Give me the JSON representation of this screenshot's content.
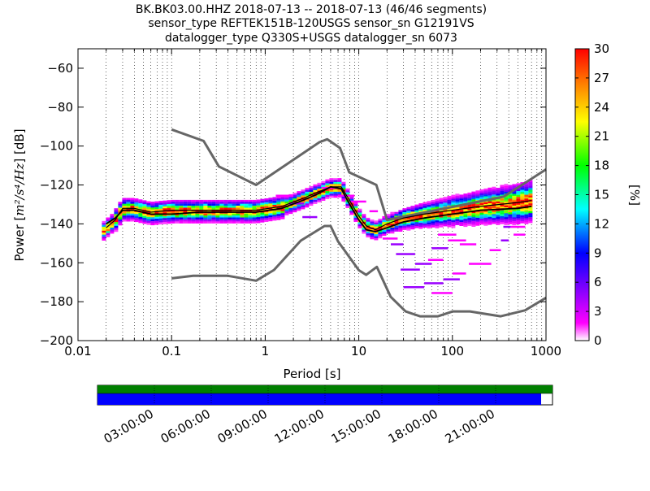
{
  "chart_data": {
    "type": "heatmap",
    "title_lines": [
      "BK.BK03.00.HHZ   2018-07-13 -- 2018-07-13  (46/46 segments)",
      "sensor_type REFTEK151B-120USGS sensor_sn G12191VS",
      "datalogger_type Q330S+USGS datalogger_sn 6073"
    ],
    "xlabel": "Period [s]",
    "ylabel_prefix": "Power [",
    "ylabel_math": "m²/s⁴/Hz",
    "ylabel_suffix": "] [dB]",
    "x_scale": "log",
    "xlim": [
      0.01,
      1000
    ],
    "ylim": [
      -200,
      -50
    ],
    "x_ticks": [
      0.01,
      0.1,
      1,
      10,
      100,
      1000
    ],
    "x_tick_labels": [
      "0.01",
      "0.1",
      "1",
      "10",
      "100",
      "1000"
    ],
    "y_ticks": [
      -200,
      -180,
      -160,
      -140,
      -120,
      -100,
      -80,
      -60
    ],
    "y_tick_labels": [
      "−200",
      "−180",
      "−160",
      "−140",
      "−120",
      "−100",
      "−80",
      "−60"
    ],
    "grid": "dotted-vertical",
    "colorbar": {
      "label": "[%]",
      "range": [
        0,
        30
      ],
      "ticks": [
        0,
        3,
        6,
        9,
        12,
        15,
        18,
        21,
        24,
        27,
        30
      ],
      "tick_labels": [
        "0",
        "3",
        "6",
        "9",
        "12",
        "15",
        "18",
        "21",
        "24",
        "27",
        "30"
      ],
      "colormap": [
        "#ffffff",
        "#ff00ff",
        "#7f00ff",
        "#0000ff",
        "#00ffff",
        "#00ff00",
        "#ffff00",
        "#ff7f00",
        "#ff0000"
      ]
    },
    "noise_model_high": {
      "color": "#666666",
      "x": [
        0.1,
        0.22,
        0.32,
        0.8,
        3.8,
        4.6,
        6.3,
        7.9,
        15.4,
        20,
        354,
        1000
      ],
      "y": [
        -91.5,
        -97.4,
        -110.5,
        -120,
        -98,
        -96.5,
        -101,
        -113.5,
        -120,
        -138,
        -126,
        -112
      ]
    },
    "noise_model_low": {
      "color": "#666666",
      "x": [
        0.1,
        0.17,
        0.4,
        0.8,
        1.24,
        2.4,
        4.3,
        5,
        6,
        10,
        12,
        15.6,
        21.9,
        31.6,
        45,
        70,
        101,
        154,
        328,
        600,
        1000
      ],
      "y": [
        -168,
        -166.7,
        -166.7,
        -169.2,
        -163.7,
        -148.6,
        -141.1,
        -141.1,
        -149,
        -163.8,
        -166.2,
        -162.1,
        -177.5,
        -185,
        -187.5,
        -187.5,
        -185,
        -185,
        -187.5,
        -184.4,
        -178
      ]
    },
    "mean_curve": {
      "color": "#000000",
      "x": [
        0.02,
        0.025,
        0.03,
        0.04,
        0.06,
        0.1,
        0.2,
        0.4,
        0.8,
        1.5,
        2.5,
        3.5,
        5,
        6.5,
        8,
        10,
        12,
        15,
        20,
        30,
        50,
        100,
        200,
        500,
        700
      ],
      "y": [
        -140,
        -137,
        -133,
        -133,
        -135,
        -135,
        -134,
        -134,
        -134,
        -132,
        -128,
        -125,
        -121,
        -122,
        -130,
        -138,
        -143,
        -144,
        -142,
        -139,
        -137,
        -135,
        -133,
        -132,
        -131
      ]
    },
    "mode_curve": {
      "color": "#000000",
      "x": [
        0.02,
        0.025,
        0.03,
        0.04,
        0.06,
        0.1,
        0.2,
        0.4,
        0.8,
        1.5,
        2.5,
        3.5,
        5,
        6.5,
        8,
        10,
        12,
        15,
        20,
        30,
        50,
        100,
        200,
        500,
        700
      ],
      "y": [
        -142,
        -138,
        -132,
        -132,
        -134,
        -133,
        -133,
        -133,
        -133,
        -131,
        -127,
        -124,
        -121,
        -121,
        -128,
        -136,
        -141,
        -143,
        -140,
        -137,
        -135,
        -133,
        -131,
        -129,
        -128
      ]
    },
    "timeline": {
      "tick_labels": [
        "03:00:00",
        "06:00:00",
        "09:00:00",
        "12:00:00",
        "15:00:00",
        "18:00:00",
        "21:00:00"
      ],
      "tick_hours": [
        3,
        6,
        9,
        12,
        15,
        18,
        21
      ],
      "range_hours": [
        0,
        24
      ],
      "data_coverage_color": "#008000",
      "psd_coverage_color": "#0000ff",
      "data_coverage_end_hours": 24,
      "psd_coverage_end_hours": 23.4
    }
  }
}
